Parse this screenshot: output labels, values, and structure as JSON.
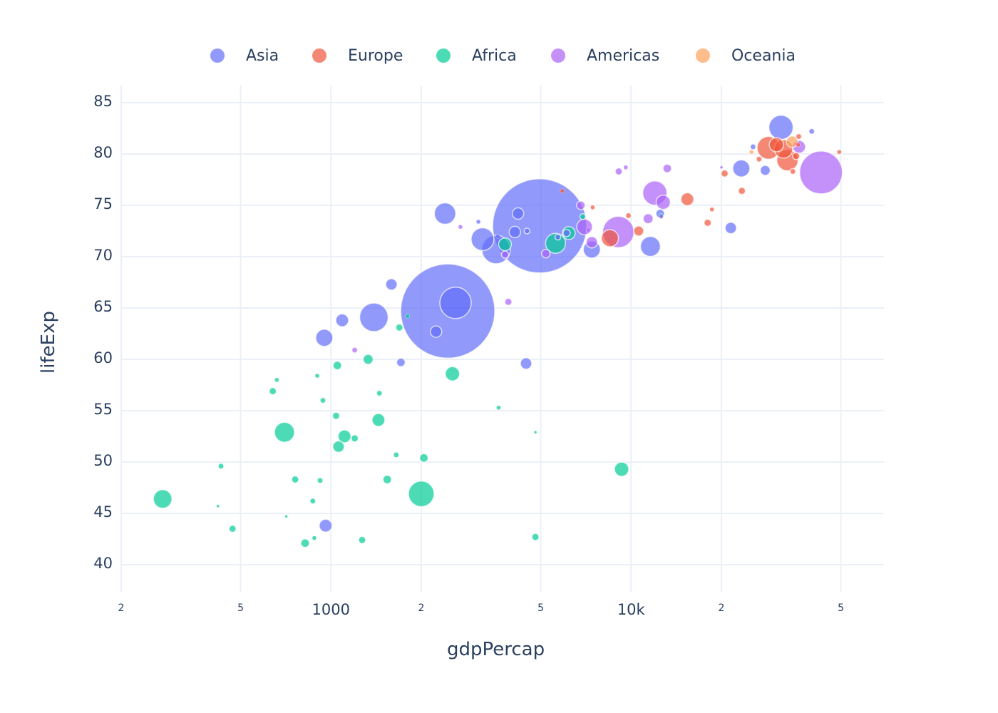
{
  "legend": {
    "items": [
      {
        "label": "Asia",
        "color": "#636efa"
      },
      {
        "label": "Europe",
        "color": "#EF553B"
      },
      {
        "label": "Africa",
        "color": "#00cc96"
      },
      {
        "label": "Americas",
        "color": "#ab63fa"
      },
      {
        "label": "Oceania",
        "color": "#FFA15A"
      }
    ]
  },
  "axes": {
    "x_title": "gdpPercap",
    "y_title": "lifeExp",
    "x_ticks": [
      {
        "label": "2",
        "value": 200,
        "minor": true
      },
      {
        "label": "5",
        "value": 500,
        "minor": true
      },
      {
        "label": "1000",
        "value": 1000,
        "minor": false
      },
      {
        "label": "2",
        "value": 2000,
        "minor": true
      },
      {
        "label": "5",
        "value": 5000,
        "minor": true
      },
      {
        "label": "10k",
        "value": 10000,
        "minor": false
      },
      {
        "label": "2",
        "value": 20000,
        "minor": true
      },
      {
        "label": "5",
        "value": 50000,
        "minor": true
      }
    ],
    "y_ticks": [
      "85",
      "80",
      "75",
      "70",
      "65",
      "60",
      "55",
      "50",
      "45",
      "40"
    ]
  },
  "chart_data": {
    "type": "scatter",
    "title": "",
    "xlabel": "gdpPercap",
    "ylabel": "lifeExp",
    "x_scale": "log",
    "xlim": [
      200,
      65000
    ],
    "ylim": [
      37.5,
      86.5
    ],
    "grid": true,
    "legend_position": "top-horizontal",
    "marker_opacity": 0.7,
    "series": [
      {
        "name": "Asia",
        "color": "#636efa",
        "points": [
          [
            4960,
            73.0,
            66
          ],
          [
            2450,
            64.7,
            66
          ],
          [
            2600,
            65.5,
            22
          ],
          [
            3550,
            70.7,
            20
          ],
          [
            1390,
            64.1,
            20
          ],
          [
            2400,
            74.2,
            15
          ],
          [
            3200,
            71.7,
            16
          ],
          [
            11600,
            71.0,
            14
          ],
          [
            7400,
            70.7,
            12
          ],
          [
            31600,
            82.6,
            17
          ],
          [
            23300,
            78.6,
            12
          ],
          [
            950,
            62.1,
            12
          ],
          [
            1090,
            63.8,
            9
          ],
          [
            1590,
            67.3,
            8
          ],
          [
            4200,
            74.2,
            8
          ],
          [
            4100,
            72.4,
            8
          ],
          [
            960,
            43.8,
            9
          ],
          [
            4470,
            59.6,
            8
          ],
          [
            2240,
            62.7,
            8
          ],
          [
            1710,
            59.7,
            6
          ],
          [
            21500,
            72.8,
            8
          ],
          [
            28000,
            78.4,
            7
          ],
          [
            12500,
            74.2,
            6
          ],
          [
            3100,
            73.4,
            3
          ],
          [
            40000,
            82.2,
            4
          ],
          [
            25500,
            80.7,
            4
          ],
          [
            4500,
            72.5,
            4
          ],
          [
            5700,
            71.9,
            4
          ],
          [
            6100,
            72.3,
            5
          ],
          [
            3600,
            72.0,
            3
          ]
        ]
      },
      {
        "name": "Europe",
        "color": "#EF553B",
        "points": [
          [
            33200,
            79.4,
            15
          ],
          [
            28700,
            80.6,
            16
          ],
          [
            32200,
            80.5,
            13
          ],
          [
            30500,
            80.9,
            10
          ],
          [
            15400,
            75.6,
            9
          ],
          [
            8500,
            71.8,
            12
          ],
          [
            10600,
            72.5,
            7
          ],
          [
            20500,
            78.1,
            5
          ],
          [
            23400,
            76.4,
            5
          ],
          [
            18000,
            73.3,
            5
          ],
          [
            36200,
            81.7,
            4
          ],
          [
            35500,
            79.8,
            5
          ],
          [
            34600,
            78.3,
            4
          ],
          [
            49400,
            80.2,
            3
          ],
          [
            9800,
            74.0,
            4
          ],
          [
            7450,
            74.8,
            3
          ],
          [
            5900,
            76.4,
            3
          ],
          [
            18600,
            74.6,
            3
          ],
          [
            26700,
            79.5,
            4
          ],
          [
            36000,
            80.9,
            3
          ]
        ]
      },
      {
        "name": "Africa",
        "color": "#00cc96",
        "points": [
          [
            2000,
            46.9,
            18
          ],
          [
            700,
            52.9,
            14
          ],
          [
            275,
            46.4,
            13
          ],
          [
            5600,
            71.3,
            14
          ],
          [
            9300,
            49.3,
            10
          ],
          [
            2540,
            58.6,
            10
          ],
          [
            1110,
            52.5,
            9
          ],
          [
            1440,
            54.1,
            9
          ],
          [
            1060,
            51.5,
            8
          ],
          [
            1330,
            60.0,
            7
          ],
          [
            3800,
            71.2,
            9
          ],
          [
            6200,
            72.3,
            9
          ],
          [
            1050,
            59.4,
            6
          ],
          [
            470,
            43.5,
            5
          ],
          [
            640,
            56.9,
            5
          ],
          [
            820,
            42.1,
            6
          ],
          [
            1270,
            42.4,
            5
          ],
          [
            1200,
            52.3,
            5
          ],
          [
            1540,
            48.3,
            6
          ],
          [
            2040,
            50.4,
            6
          ],
          [
            4800,
            42.7,
            5
          ],
          [
            760,
            48.3,
            5
          ],
          [
            920,
            48.2,
            4
          ],
          [
            870,
            46.2,
            4
          ],
          [
            430,
            49.6,
            4
          ],
          [
            1690,
            63.1,
            5
          ],
          [
            1040,
            54.5,
            5
          ],
          [
            940,
            56.0,
            4
          ],
          [
            1450,
            56.7,
            4
          ],
          [
            1650,
            50.7,
            4
          ],
          [
            880,
            42.6,
            3
          ],
          [
            900,
            58.4,
            3
          ],
          [
            6900,
            73.9,
            4
          ],
          [
            660,
            58.0,
            3
          ],
          [
            3620,
            55.3,
            3
          ],
          [
            1800,
            64.2,
            3
          ],
          [
            12600,
            74.0,
            3
          ],
          [
            710,
            44.7,
            2
          ],
          [
            420,
            45.7,
            2
          ],
          [
            4800,
            52.9,
            2
          ]
        ]
      },
      {
        "name": "Americas",
        "color": "#ab63fa",
        "points": [
          [
            42950,
            78.2,
            30
          ],
          [
            9070,
            72.4,
            22
          ],
          [
            12000,
            76.2,
            17
          ],
          [
            12800,
            75.3,
            10
          ],
          [
            7000,
            72.9,
            11
          ],
          [
            11400,
            73.7,
            7
          ],
          [
            7400,
            71.4,
            8
          ],
          [
            36300,
            80.7,
            9
          ],
          [
            9600,
            78.7,
            3
          ],
          [
            9100,
            78.3,
            5
          ],
          [
            13200,
            78.6,
            6
          ],
          [
            5200,
            70.3,
            6
          ],
          [
            3800,
            70.2,
            5
          ],
          [
            3900,
            65.6,
            5
          ],
          [
            1200,
            60.9,
            4
          ],
          [
            6800,
            75.0,
            6
          ],
          [
            2700,
            72.9,
            3
          ],
          [
            12600,
            73.9,
            3
          ],
          [
            20000,
            78.7,
            2
          ],
          [
            7200,
            72.6,
            3
          ]
        ]
      },
      {
        "name": "Oceania",
        "color": "#FFA15A",
        "points": [
          [
            34400,
            81.2,
            8
          ],
          [
            25200,
            80.2,
            3
          ]
        ]
      }
    ]
  }
}
